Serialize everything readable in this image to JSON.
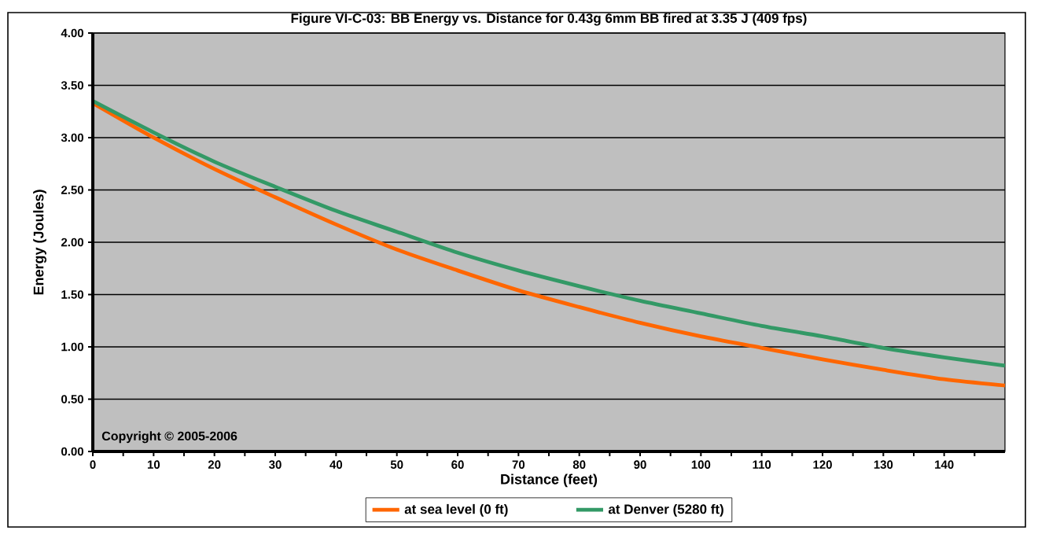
{
  "chart_data": {
    "type": "line",
    "title": "Figure VI-C-03:  BB Energy vs. Distance for 0.43g 6mm BB fired at 3.35 J (409 fps)",
    "xlabel": "Distance (feet)",
    "ylabel": "Energy (Joules)",
    "x": [
      0,
      10,
      20,
      30,
      40,
      50,
      60,
      70,
      80,
      90,
      100,
      110,
      120,
      130,
      140,
      150
    ],
    "series": [
      {
        "name": "at sea level (0 ft)",
        "color": "#ff6600",
        "values": [
          3.33,
          3.0,
          2.7,
          2.43,
          2.17,
          1.93,
          1.73,
          1.54,
          1.38,
          1.23,
          1.1,
          0.99,
          0.88,
          0.78,
          0.69,
          0.63
        ]
      },
      {
        "name": "at Denver (5280 ft)",
        "color": "#339966",
        "values": [
          3.35,
          3.05,
          2.77,
          2.53,
          2.3,
          2.1,
          1.9,
          1.73,
          1.58,
          1.44,
          1.32,
          1.2,
          1.1,
          0.99,
          0.9,
          0.82
        ]
      }
    ],
    "xlim": [
      0,
      150
    ],
    "xticks": [
      0,
      {
        "value": 5,
        "label": null
      },
      10,
      {
        "value": 15,
        "label": null
      },
      20,
      {
        "value": 25,
        "label": null
      },
      30,
      {
        "value": 35,
        "label": null
      },
      40,
      {
        "value": 45,
        "label": null
      },
      50,
      {
        "value": 55,
        "label": null
      },
      60,
      {
        "value": 65,
        "label": null
      },
      70,
      {
        "value": 75,
        "label": null
      },
      80,
      {
        "value": 85,
        "label": null
      },
      90,
      {
        "value": 95,
        "label": null
      },
      100,
      {
        "value": 105,
        "label": null
      },
      110,
      {
        "value": 115,
        "label": null
      },
      120,
      {
        "value": 125,
        "label": null
      },
      130,
      {
        "value": 135,
        "label": null
      },
      140,
      {
        "value": 145,
        "label": null
      }
    ],
    "ylim": [
      0,
      4
    ],
    "yticks": [
      {
        "value": 0,
        "label": "0.00"
      },
      {
        "value": 0.5,
        "label": "0.50"
      },
      {
        "value": 1,
        "label": "1.00"
      },
      {
        "value": 1.5,
        "label": "1.50"
      },
      {
        "value": 2,
        "label": "2.00"
      },
      {
        "value": 2.5,
        "label": "2.50"
      },
      {
        "value": 3,
        "label": "3.00"
      },
      {
        "value": 3.5,
        "label": "3.50"
      },
      {
        "value": 4,
        "label": "4.00"
      }
    ],
    "grid": "y",
    "legend": "bottom",
    "marker": "none",
    "line_style": "solid",
    "annotations": [
      "Copyright © 2005-2006"
    ]
  }
}
